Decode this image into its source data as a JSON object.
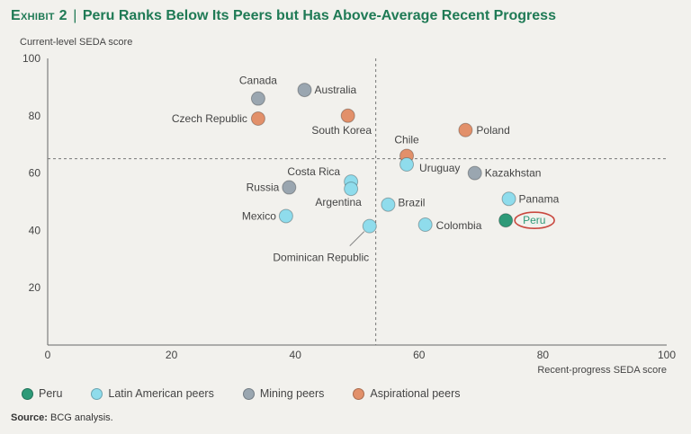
{
  "header": {
    "exhibit_label": "Exhibit 2",
    "separator": "|",
    "title": "Peru Ranks Below Its Peers but Has Above-Average Recent Progress"
  },
  "source": {
    "label": "Source:",
    "text": "BCG analysis."
  },
  "colors": {
    "Peru": "#2e9a78",
    "Latin American peers": "#8fdcec",
    "Mining peers": "#9aa6b0",
    "Aspirational peers": "#e2906a",
    "highlight_ring": "#c9483f"
  },
  "chart_data": {
    "type": "scatter",
    "xlabel": "Recent-progress SEDA score",
    "ylabel": "Current-level SEDA score",
    "xlim": [
      0,
      100
    ],
    "ylim": [
      0,
      100
    ],
    "xticks": [
      0,
      20,
      40,
      60,
      80,
      100
    ],
    "yticks": [
      20,
      40,
      60,
      80,
      100
    ],
    "reference_lines": {
      "x": 53,
      "y": 65
    },
    "legend": [
      "Peru",
      "Latin American peers",
      "Mining peers",
      "Aspirational peers"
    ],
    "legend_position": "bottom",
    "points": [
      {
        "label": "Canada",
        "x": 34,
        "y": 86,
        "group": "Mining peers"
      },
      {
        "label": "Australia",
        "x": 41.5,
        "y": 89,
        "group": "Mining peers"
      },
      {
        "label": "Czech Republic",
        "x": 34,
        "y": 79,
        "group": "Aspirational peers"
      },
      {
        "label": "South Korea",
        "x": 48.5,
        "y": 80,
        "group": "Aspirational peers"
      },
      {
        "label": "Poland",
        "x": 67.5,
        "y": 75,
        "group": "Aspirational peers"
      },
      {
        "label": "Chile",
        "x": 58,
        "y": 66,
        "group": "Aspirational peers"
      },
      {
        "label": "Uruguay",
        "x": 58,
        "y": 63,
        "group": "Latin American peers"
      },
      {
        "label": "Kazakhstan",
        "x": 69,
        "y": 60,
        "group": "Mining peers"
      },
      {
        "label": "Costa Rica",
        "x": 49,
        "y": 57,
        "group": "Latin American peers"
      },
      {
        "label": "Argentina",
        "x": 49,
        "y": 54.5,
        "group": "Latin American peers"
      },
      {
        "label": "Russia",
        "x": 39,
        "y": 55,
        "group": "Mining peers"
      },
      {
        "label": "Brazil",
        "x": 55,
        "y": 49,
        "group": "Latin American peers"
      },
      {
        "label": "Panama",
        "x": 74.5,
        "y": 51,
        "group": "Latin American peers"
      },
      {
        "label": "Mexico",
        "x": 38.5,
        "y": 45,
        "group": "Latin American peers"
      },
      {
        "label": "Dominican Republic",
        "x": 52,
        "y": 41.5,
        "group": "Latin American peers"
      },
      {
        "label": "Colombia",
        "x": 61,
        "y": 42,
        "group": "Latin American peers"
      },
      {
        "label": "Peru",
        "x": 74,
        "y": 43.5,
        "group": "Peru"
      }
    ]
  }
}
